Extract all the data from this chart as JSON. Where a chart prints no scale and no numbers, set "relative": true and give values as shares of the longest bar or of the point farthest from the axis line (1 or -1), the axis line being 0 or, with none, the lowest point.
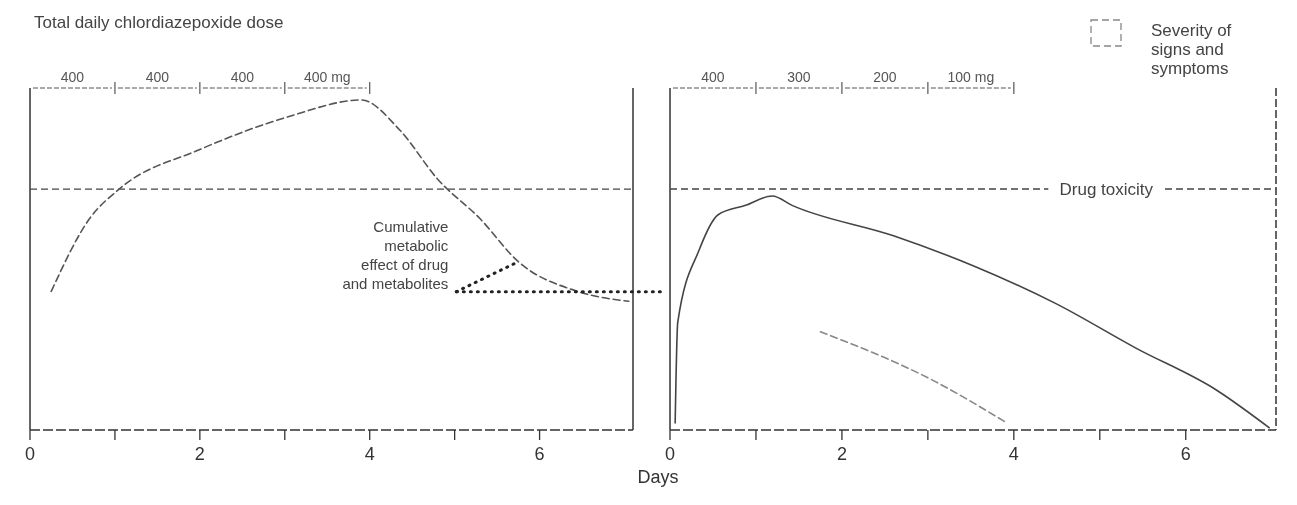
{
  "chart_data": [
    {
      "type": "line",
      "title": "Total daily chlordiazepoxide dose",
      "xlabel": "Days",
      "relative": true,
      "x": [
        0.25,
        0.7,
        1.05,
        2.0,
        3.05,
        3.9,
        4.35,
        4.8,
        5.3,
        5.75,
        6.45,
        7.05
      ],
      "series": [
        {
          "color": "#555555",
          "line_style": "dashed",
          "values": [
            0.42,
            0.64,
            0.73,
            0.85,
            0.95,
            1.0,
            0.91,
            0.76,
            0.64,
            0.51,
            0.42,
            0.39
          ]
        }
      ],
      "xlim": [
        0,
        7.1
      ],
      "xticks": [
        0,
        {
          "value": 1,
          "label": null
        },
        2,
        {
          "value": 3,
          "label": null
        },
        4,
        {
          "value": 5,
          "label": null
        },
        6
      ],
      "ref_lines": [
        {
          "axis": "y",
          "value": 0.73,
          "line_style": "dashed",
          "color": "#444444"
        }
      ],
      "annotations": [
        {
          "text": "Cumulative\nmetabolic\neffect of drug\nand metabolites",
          "x": 5.75,
          "y": 0.51
        },
        "400",
        "400",
        "400",
        "400 mg"
      ]
    },
    {
      "type": "line",
      "relative": true,
      "legend": "top right",
      "series": [
        {
          "color": "#444444",
          "line_style": "solid",
          "x": [
            0.06,
            0.09,
            0.34,
            0.56,
            0.88,
            1.19,
            1.42,
            2.6,
            3.54,
            4.49,
            5.42,
            6.36,
            6.97
          ],
          "values": [
            0.03,
            0.46,
            0.77,
            0.92,
            0.96,
            1.0,
            0.96,
            0.83,
            0.7,
            0.54,
            0.35,
            0.17,
            0.01
          ]
        },
        {
          "name": "Severity of signs and symptoms",
          "color": "#888888",
          "line_style": "dashed",
          "x": [
            1.75,
            3.07,
            3.92
          ],
          "values": [
            0.42,
            0.21,
            0.03
          ]
        }
      ],
      "xlim": [
        0,
        7.05
      ],
      "xticks": [
        0,
        {
          "value": 1,
          "label": null
        },
        2,
        {
          "value": 3,
          "label": null
        },
        4,
        {
          "value": 5,
          "label": null
        },
        6
      ],
      "ref_lines": [
        {
          "axis": "y",
          "value": 1.03,
          "label": "Drug toxicity",
          "line_style": "dashed",
          "color": "#444444"
        }
      ],
      "annotations": [
        "400",
        "300",
        "200",
        "100 mg"
      ]
    }
  ]
}
